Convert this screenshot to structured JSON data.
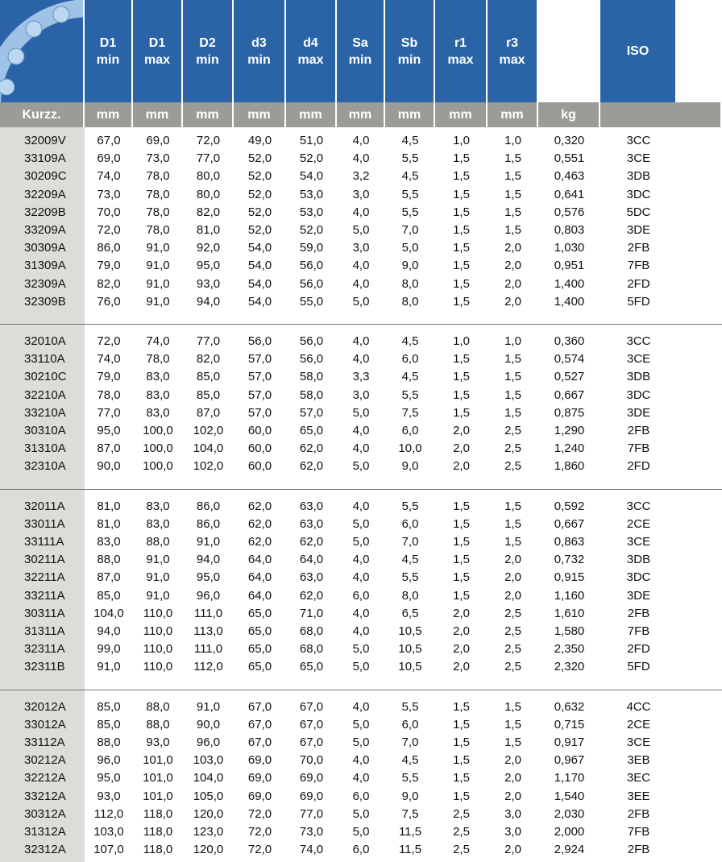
{
  "table": {
    "header": [
      [
        "D1",
        "min"
      ],
      [
        "D1",
        "max"
      ],
      [
        "D2",
        "min"
      ],
      [
        "d3",
        "min"
      ],
      [
        "d4",
        "max"
      ],
      [
        "Sa",
        "min"
      ],
      [
        "Sb",
        "min"
      ],
      [
        "r1",
        "max"
      ],
      [
        "r3",
        "max"
      ],
      null,
      [
        "ISO"
      ]
    ],
    "units": [
      "Kurzz.",
      "mm",
      "mm",
      "mm",
      "mm",
      "mm",
      "mm",
      "mm",
      "mm",
      "mm",
      "kg"
    ],
    "groups": [
      {
        "rows": [
          [
            "32009V",
            "67,0",
            "69,0",
            "72,0",
            "49,0",
            "51,0",
            "4,0",
            "4,5",
            "1,0",
            "1,0",
            "0,320",
            "3CC"
          ],
          [
            "33109A",
            "69,0",
            "73,0",
            "77,0",
            "52,0",
            "52,0",
            "4,0",
            "5,5",
            "1,5",
            "1,5",
            "0,551",
            "3CE"
          ],
          [
            "30209C",
            "74,0",
            "78,0",
            "80,0",
            "52,0",
            "54,0",
            "3,2",
            "4,5",
            "1,5",
            "1,5",
            "0,463",
            "3DB"
          ],
          [
            "32209A",
            "73,0",
            "78,0",
            "80,0",
            "52,0",
            "53,0",
            "3,0",
            "5,5",
            "1,5",
            "1,5",
            "0,641",
            "3DC"
          ],
          [
            "32209B",
            "70,0",
            "78,0",
            "82,0",
            "52,0",
            "53,0",
            "4,0",
            "5,5",
            "1,5",
            "1,5",
            "0,576",
            "5DC"
          ],
          [
            "33209A",
            "72,0",
            "78,0",
            "81,0",
            "52,0",
            "52,0",
            "5,0",
            "7,0",
            "1,5",
            "1,5",
            "0,803",
            "3DE"
          ],
          [
            "30309A",
            "86,0",
            "91,0",
            "92,0",
            "54,0",
            "59,0",
            "3,0",
            "5,0",
            "1,5",
            "2,0",
            "1,030",
            "2FB"
          ],
          [
            "31309A",
            "79,0",
            "91,0",
            "95,0",
            "54,0",
            "56,0",
            "4,0",
            "9,0",
            "1,5",
            "2,0",
            "0,951",
            "7FB"
          ],
          [
            "32309A",
            "82,0",
            "91,0",
            "93,0",
            "54,0",
            "56,0",
            "4,0",
            "8,0",
            "1,5",
            "2,0",
            "1,400",
            "2FD"
          ],
          [
            "32309B",
            "76,0",
            "91,0",
            "94,0",
            "54,0",
            "55,0",
            "5,0",
            "8,0",
            "1,5",
            "2,0",
            "1,400",
            "5FD"
          ]
        ]
      },
      {
        "rows": [
          [
            "32010A",
            "72,0",
            "74,0",
            "77,0",
            "56,0",
            "56,0",
            "4,0",
            "4,5",
            "1,0",
            "1,0",
            "0,360",
            "3CC"
          ],
          [
            "33110A",
            "74,0",
            "78,0",
            "82,0",
            "57,0",
            "56,0",
            "4,0",
            "6,0",
            "1,5",
            "1,5",
            "0,574",
            "3CE"
          ],
          [
            "30210C",
            "79,0",
            "83,0",
            "85,0",
            "57,0",
            "58,0",
            "3,3",
            "4,5",
            "1,5",
            "1,5",
            "0,527",
            "3DB"
          ],
          [
            "32210A",
            "78,0",
            "83,0",
            "85,0",
            "57,0",
            "58,0",
            "3,0",
            "5,5",
            "1,5",
            "1,5",
            "0,667",
            "3DC"
          ],
          [
            "33210A",
            "77,0",
            "83,0",
            "87,0",
            "57,0",
            "57,0",
            "5,0",
            "7,5",
            "1,5",
            "1,5",
            "0,875",
            "3DE"
          ],
          [
            "30310A",
            "95,0",
            "100,0",
            "102,0",
            "60,0",
            "65,0",
            "4,0",
            "6,0",
            "2,0",
            "2,5",
            "1,290",
            "2FB"
          ],
          [
            "31310A",
            "87,0",
            "100,0",
            "104,0",
            "60,0",
            "62,0",
            "4,0",
            "10,0",
            "2,0",
            "2,5",
            "1,240",
            "7FB"
          ],
          [
            "32310A",
            "90,0",
            "100,0",
            "102,0",
            "60,0",
            "62,0",
            "5,0",
            "9,0",
            "2,0",
            "2,5",
            "1,860",
            "2FD"
          ]
        ]
      },
      {
        "rows": [
          [
            "32011A",
            "81,0",
            "83,0",
            "86,0",
            "62,0",
            "63,0",
            "4,0",
            "5,5",
            "1,5",
            "1,5",
            "0,592",
            "3CC"
          ],
          [
            "33011A",
            "81,0",
            "83,0",
            "86,0",
            "62,0",
            "63,0",
            "5,0",
            "6,0",
            "1,5",
            "1,5",
            "0,667",
            "2CE"
          ],
          [
            "33111A",
            "83,0",
            "88,0",
            "91,0",
            "62,0",
            "62,0",
            "5,0",
            "7,0",
            "1,5",
            "1,5",
            "0,863",
            "3CE"
          ],
          [
            "30211A",
            "88,0",
            "91,0",
            "94,0",
            "64,0",
            "64,0",
            "4,0",
            "4,5",
            "1,5",
            "2,0",
            "0,732",
            "3DB"
          ],
          [
            "32211A",
            "87,0",
            "91,0",
            "95,0",
            "64,0",
            "63,0",
            "4,0",
            "5,5",
            "1,5",
            "2,0",
            "0,915",
            "3DC"
          ],
          [
            "33211A",
            "85,0",
            "91,0",
            "96,0",
            "64,0",
            "62,0",
            "6,0",
            "8,0",
            "1,5",
            "2,0",
            "1,160",
            "3DE"
          ],
          [
            "30311A",
            "104,0",
            "110,0",
            "111,0",
            "65,0",
            "71,0",
            "4,0",
            "6,5",
            "2,0",
            "2,5",
            "1,610",
            "2FB"
          ],
          [
            "31311A",
            "94,0",
            "110,0",
            "113,0",
            "65,0",
            "68,0",
            "4,0",
            "10,5",
            "2,0",
            "2,5",
            "1,580",
            "7FB"
          ],
          [
            "32311A",
            "99,0",
            "110,0",
            "111,0",
            "65,0",
            "68,0",
            "5,0",
            "10,5",
            "2,0",
            "2,5",
            "2,350",
            "2FD"
          ],
          [
            "32311B",
            "91,0",
            "110,0",
            "112,0",
            "65,0",
            "65,0",
            "5,0",
            "10,5",
            "2,0",
            "2,5",
            "2,320",
            "5FD"
          ]
        ]
      },
      {
        "rows": [
          [
            "32012A",
            "85,0",
            "88,0",
            "91,0",
            "67,0",
            "67,0",
            "4,0",
            "5,5",
            "1,5",
            "1,5",
            "0,632",
            "4CC"
          ],
          [
            "33012A",
            "85,0",
            "88,0",
            "90,0",
            "67,0",
            "67,0",
            "5,0",
            "6,0",
            "1,5",
            "1,5",
            "0,715",
            "2CE"
          ],
          [
            "33112A",
            "88,0",
            "93,0",
            "96,0",
            "67,0",
            "67,0",
            "5,0",
            "7,0",
            "1,5",
            "1,5",
            "0,917",
            "3CE"
          ],
          [
            "30212A",
            "96,0",
            "101,0",
            "103,0",
            "69,0",
            "70,0",
            "4,0",
            "4,5",
            "1,5",
            "2,0",
            "0,967",
            "3EB"
          ],
          [
            "32212A",
            "95,0",
            "101,0",
            "104,0",
            "69,0",
            "69,0",
            "4,0",
            "5,5",
            "1,5",
            "2,0",
            "1,170",
            "3EC"
          ],
          [
            "33212A",
            "93,0",
            "101,0",
            "105,0",
            "69,0",
            "69,0",
            "6,0",
            "9,0",
            "1,5",
            "2,0",
            "1,540",
            "3EE"
          ],
          [
            "30312A",
            "112,0",
            "118,0",
            "120,0",
            "72,0",
            "77,0",
            "5,0",
            "7,5",
            "2,5",
            "3,0",
            "2,030",
            "2FB"
          ],
          [
            "31312A",
            "103,0",
            "118,0",
            "123,0",
            "72,0",
            "73,0",
            "5,0",
            "11,5",
            "2,5",
            "3,0",
            "2,000",
            "7FB"
          ],
          [
            "32312A",
            "107,0",
            "118,0",
            "120,0",
            "72,0",
            "74,0",
            "6,0",
            "11,5",
            "2,5",
            "2,0",
            "2,924",
            "2FB"
          ]
        ]
      }
    ]
  }
}
